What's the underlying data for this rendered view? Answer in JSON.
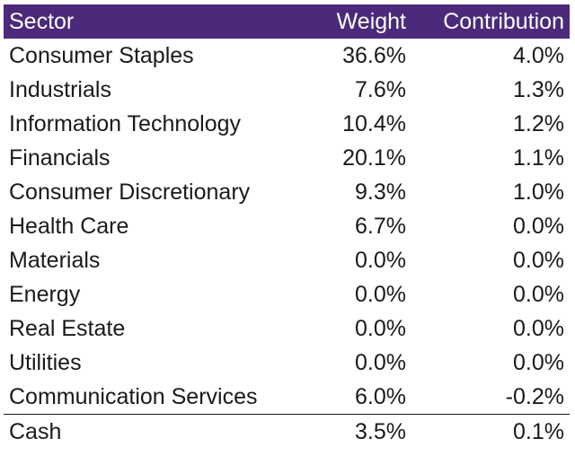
{
  "table": {
    "headers": {
      "sector": "Sector",
      "weight": "Weight",
      "contribution": "Contribution"
    },
    "rows": [
      {
        "sector": "Consumer Staples",
        "weight": "36.6%",
        "contribution": "4.0%"
      },
      {
        "sector": "Industrials",
        "weight": "7.6%",
        "contribution": "1.3%"
      },
      {
        "sector": "Information Technology",
        "weight": "10.4%",
        "contribution": "1.2%"
      },
      {
        "sector": "Financials",
        "weight": "20.1%",
        "contribution": "1.1%"
      },
      {
        "sector": "Consumer Discretionary",
        "weight": "9.3%",
        "contribution": "1.0%"
      },
      {
        "sector": "Health Care",
        "weight": "6.7%",
        "contribution": "0.0%"
      },
      {
        "sector": "Materials",
        "weight": "0.0%",
        "contribution": "0.0%"
      },
      {
        "sector": "Energy",
        "weight": "0.0%",
        "contribution": "0.0%"
      },
      {
        "sector": "Real Estate",
        "weight": "0.0%",
        "contribution": "0.0%"
      },
      {
        "sector": "Utilities",
        "weight": "0.0%",
        "contribution": "0.0%"
      },
      {
        "sector": "Communication Services",
        "weight": "6.0%",
        "contribution": "-0.2%"
      },
      {
        "sector": "Cash",
        "weight": "3.5%",
        "contribution": "0.1%"
      }
    ]
  },
  "colors": {
    "header_background": "#4b2a7b",
    "header_text": "#ffffff",
    "body_text": "#1a1a1a"
  }
}
